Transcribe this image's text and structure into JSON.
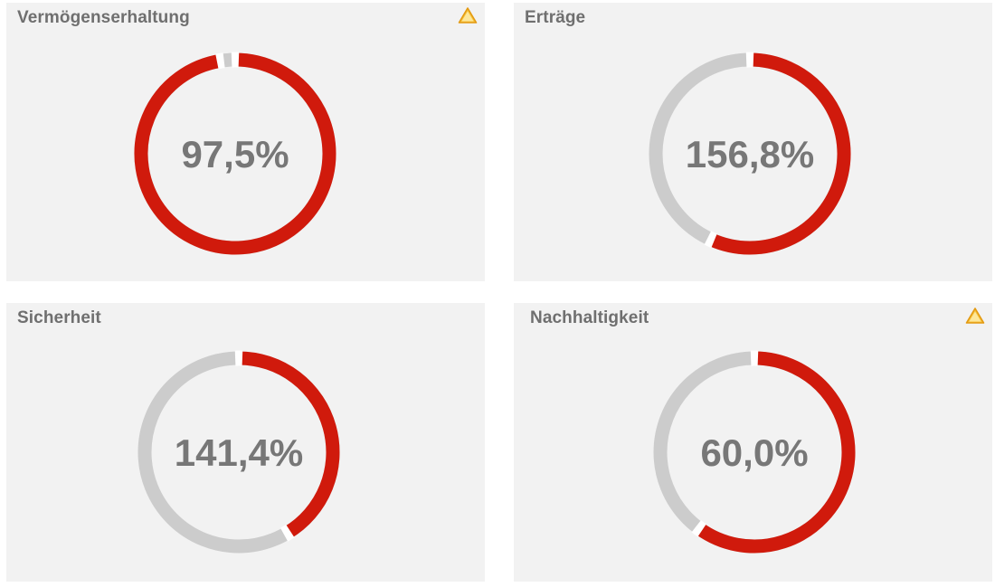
{
  "colors": {
    "filled": "#d01a0c",
    "remaining": "#cccccc",
    "text": "#777777",
    "panel": "#f2f2f2",
    "warning": "#f3b31a"
  },
  "chart_data": [
    {
      "type": "donut",
      "title": "Vermögenserhaltung",
      "value_label": "97,5%",
      "filled_fraction": 0.975,
      "warning": true,
      "warning_icon": "warning-triangle-icon"
    },
    {
      "type": "donut",
      "title": "Erträge",
      "value_label": "156,8%",
      "filled_fraction": 0.568,
      "warning": false
    },
    {
      "type": "donut",
      "title": "Sicherheit",
      "value_label": "141,4%",
      "filled_fraction": 0.414,
      "warning": false
    },
    {
      "type": "donut",
      "title": "Nachhaltigkeit",
      "value_label": "60,0%",
      "filled_fraction": 0.6,
      "warning": true,
      "warning_icon": "warning-triangle-icon"
    }
  ]
}
